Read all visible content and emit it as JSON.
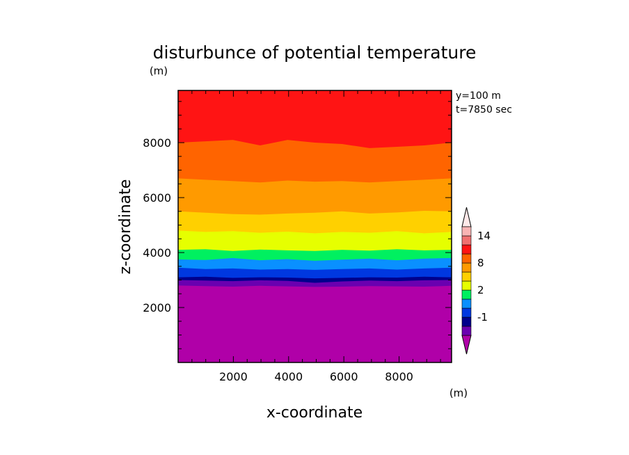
{
  "chart_data": {
    "type": "heatmap",
    "title": "disturbunce of potential temperature",
    "xlabel": "x-coordinate",
    "ylabel": "z-coordinate",
    "yunit": "(m)",
    "xlim": [
      0,
      9900
    ],
    "ylim": [
      0,
      9900
    ],
    "xticks": [
      2000,
      4000,
      6000,
      8000
    ],
    "yticks": [
      2000,
      4000,
      6000,
      8000
    ],
    "annotations": [
      "y=100 m",
      "t=7850 sec"
    ],
    "colorbar": {
      "unit": "(m)",
      "tick_labels": [
        "14",
        "8",
        "2",
        "-1"
      ],
      "levels": [
        {
          "name": "lt-neg2",
          "color": "#b000a8"
        },
        {
          "name": "neg2-neg1",
          "color": "#6a00b0"
        },
        {
          "name": "neg1-0",
          "color": "#00008c"
        },
        {
          "name": "0-0.5",
          "color": "#0038e0"
        },
        {
          "name": "0.5-1",
          "color": "#0a90ff"
        },
        {
          "name": "1-2",
          "color": "#00f060"
        },
        {
          "name": "2-4",
          "color": "#e6ff00"
        },
        {
          "name": "4-6",
          "color": "#ffd000"
        },
        {
          "name": "6-8",
          "color": "#ff9a00"
        },
        {
          "name": "8-10",
          "color": "#ff6400"
        },
        {
          "name": "10-12",
          "color": "#ff1414"
        },
        {
          "name": "12-14",
          "color": "#f07070"
        },
        {
          "name": "14-16",
          "color": "#f8b4b4"
        },
        {
          "name": "gt-16",
          "color": "#ffe8e8"
        }
      ]
    },
    "bands": [
      {
        "color": "#b000a8",
        "z": [
          2800,
          2780,
          2760,
          2790,
          2770,
          2750,
          2760,
          2780,
          2770,
          2760,
          2790
        ]
      },
      {
        "color": "#6a00b0",
        "z": [
          3000,
          2980,
          2960,
          2990,
          2970,
          2900,
          2950,
          2980,
          2960,
          2990,
          3000
        ]
      },
      {
        "color": "#00008c",
        "z": [
          3100,
          3120,
          3080,
          3100,
          3090,
          3060,
          3080,
          3100,
          3090,
          3120,
          3100
        ]
      },
      {
        "color": "#0038e0",
        "z": [
          3450,
          3400,
          3420,
          3380,
          3400,
          3370,
          3400,
          3420,
          3380,
          3420,
          3450
        ]
      },
      {
        "color": "#0a90ff",
        "z": [
          3750,
          3730,
          3800,
          3720,
          3760,
          3700,
          3740,
          3780,
          3720,
          3780,
          3800
        ]
      },
      {
        "color": "#00f060",
        "z": [
          4100,
          4120,
          4060,
          4110,
          4080,
          4060,
          4100,
          4070,
          4120,
          4080,
          4100
        ]
      },
      {
        "color": "#e6ff00",
        "z": [
          4800,
          4750,
          4780,
          4720,
          4760,
          4700,
          4750,
          4720,
          4780,
          4700,
          4750
        ]
      },
      {
        "color": "#ffd000",
        "z": [
          5500,
          5450,
          5400,
          5380,
          5420,
          5450,
          5500,
          5420,
          5460,
          5520,
          5500
        ]
      },
      {
        "color": "#ff9a00",
        "z": [
          6700,
          6650,
          6600,
          6550,
          6620,
          6580,
          6600,
          6550,
          6600,
          6650,
          6700
        ]
      },
      {
        "color": "#ff6400",
        "z": [
          8000,
          8050,
          8100,
          7900,
          8100,
          8000,
          7950,
          7800,
          7850,
          7900,
          8000
        ]
      },
      {
        "color": "#ff1414",
        "z": [
          9900,
          9900,
          9900,
          9900,
          9900,
          9900,
          9900,
          9900,
          9900,
          9900,
          9900
        ]
      }
    ]
  }
}
